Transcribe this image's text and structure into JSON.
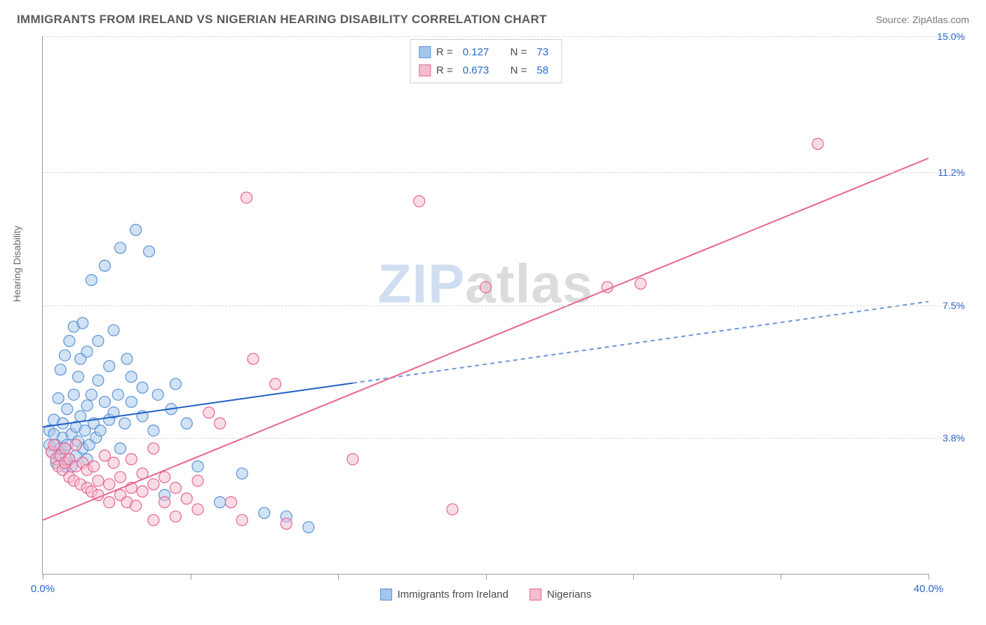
{
  "header": {
    "title": "IMMIGRANTS FROM IRELAND VS NIGERIAN HEARING DISABILITY CORRELATION CHART",
    "source_label": "Source: ",
    "source_name": "ZipAtlas.com"
  },
  "chart": {
    "type": "scatter",
    "ylabel": "Hearing Disability",
    "xlim": [
      0,
      40
    ],
    "ylim": [
      0,
      15
    ],
    "x_ticks": [
      0,
      6.67,
      13.33,
      20,
      26.67,
      33.33,
      40
    ],
    "x_tick_labels_shown": {
      "0": "0.0%",
      "40": "40.0%"
    },
    "y_gridlines": [
      3.8,
      7.5,
      11.2,
      15.0
    ],
    "y_tick_labels": [
      "3.8%",
      "7.5%",
      "11.2%",
      "15.0%"
    ],
    "background_color": "#ffffff",
    "grid_color": "#d8d8d8",
    "axis_color": "#9a9a9a",
    "tick_label_color": "#2968c8",
    "label_fontsize": 14,
    "marker_radius": 8,
    "marker_opacity": 0.5,
    "series": [
      {
        "name": "Immigrants from Ireland",
        "color_fill": "#a4c6ec",
        "color_stroke": "#5b93d6",
        "R": 0.127,
        "N": 73,
        "trend": {
          "x1": 0,
          "y1": 4.1,
          "x2": 40,
          "y2": 7.6,
          "solid_until_x": 14,
          "solid_color": "#1f5fc4",
          "dash_color": "#6a96d8",
          "width": 2
        },
        "points": [
          [
            0.3,
            3.6
          ],
          [
            0.3,
            4.0
          ],
          [
            0.4,
            3.4
          ],
          [
            0.5,
            3.9
          ],
          [
            0.5,
            4.3
          ],
          [
            0.6,
            3.1
          ],
          [
            0.6,
            3.6
          ],
          [
            0.7,
            3.3
          ],
          [
            0.7,
            4.9
          ],
          [
            0.8,
            3.5
          ],
          [
            0.8,
            5.7
          ],
          [
            0.9,
            3.8
          ],
          [
            0.9,
            4.2
          ],
          [
            1.0,
            3.0
          ],
          [
            1.0,
            3.5
          ],
          [
            1.0,
            6.1
          ],
          [
            1.1,
            3.6
          ],
          [
            1.1,
            4.6
          ],
          [
            1.2,
            3.2
          ],
          [
            1.2,
            6.5
          ],
          [
            1.3,
            3.0
          ],
          [
            1.3,
            3.9
          ],
          [
            1.4,
            5.0
          ],
          [
            1.4,
            6.9
          ],
          [
            1.5,
            3.3
          ],
          [
            1.5,
            4.1
          ],
          [
            1.6,
            3.7
          ],
          [
            1.6,
            5.5
          ],
          [
            1.7,
            4.4
          ],
          [
            1.7,
            6.0
          ],
          [
            1.8,
            3.5
          ],
          [
            1.8,
            7.0
          ],
          [
            1.9,
            4.0
          ],
          [
            2.0,
            3.2
          ],
          [
            2.0,
            4.7
          ],
          [
            2.0,
            6.2
          ],
          [
            2.1,
            3.6
          ],
          [
            2.2,
            5.0
          ],
          [
            2.2,
            8.2
          ],
          [
            2.3,
            4.2
          ],
          [
            2.4,
            3.8
          ],
          [
            2.5,
            5.4
          ],
          [
            2.5,
            6.5
          ],
          [
            2.6,
            4.0
          ],
          [
            2.8,
            4.8
          ],
          [
            2.8,
            8.6
          ],
          [
            3.0,
            4.3
          ],
          [
            3.0,
            5.8
          ],
          [
            3.2,
            4.5
          ],
          [
            3.2,
            6.8
          ],
          [
            3.4,
            5.0
          ],
          [
            3.5,
            3.5
          ],
          [
            3.5,
            9.1
          ],
          [
            3.7,
            4.2
          ],
          [
            3.8,
            6.0
          ],
          [
            4.0,
            4.8
          ],
          [
            4.0,
            5.5
          ],
          [
            4.2,
            9.6
          ],
          [
            4.5,
            4.4
          ],
          [
            4.5,
            5.2
          ],
          [
            4.8,
            9.0
          ],
          [
            5.0,
            4.0
          ],
          [
            5.2,
            5.0
          ],
          [
            5.5,
            2.2
          ],
          [
            5.8,
            4.6
          ],
          [
            6.0,
            5.3
          ],
          [
            6.5,
            4.2
          ],
          [
            7.0,
            3.0
          ],
          [
            8.0,
            2.0
          ],
          [
            9.0,
            2.8
          ],
          [
            10.0,
            1.7
          ],
          [
            11.0,
            1.6
          ],
          [
            12.0,
            1.3
          ]
        ]
      },
      {
        "name": "Nigerians",
        "color_fill": "#f4bccd",
        "color_stroke": "#e8648f",
        "R": 0.673,
        "N": 58,
        "trend": {
          "x1": 0,
          "y1": 1.5,
          "x2": 40,
          "y2": 11.6,
          "solid_until_x": 40,
          "solid_color": "#e8648f",
          "dash_color": "#e8648f",
          "width": 2
        },
        "points": [
          [
            0.4,
            3.4
          ],
          [
            0.5,
            3.6
          ],
          [
            0.6,
            3.2
          ],
          [
            0.7,
            3.0
          ],
          [
            0.8,
            3.3
          ],
          [
            0.9,
            2.9
          ],
          [
            1.0,
            3.1
          ],
          [
            1.0,
            3.5
          ],
          [
            1.2,
            2.7
          ],
          [
            1.2,
            3.2
          ],
          [
            1.4,
            2.6
          ],
          [
            1.5,
            3.0
          ],
          [
            1.5,
            3.6
          ],
          [
            1.7,
            2.5
          ],
          [
            1.8,
            3.1
          ],
          [
            2.0,
            2.4
          ],
          [
            2.0,
            2.9
          ],
          [
            2.2,
            2.3
          ],
          [
            2.3,
            3.0
          ],
          [
            2.5,
            2.2
          ],
          [
            2.5,
            2.6
          ],
          [
            2.8,
            3.3
          ],
          [
            3.0,
            2.0
          ],
          [
            3.0,
            2.5
          ],
          [
            3.2,
            3.1
          ],
          [
            3.5,
            2.2
          ],
          [
            3.5,
            2.7
          ],
          [
            3.8,
            2.0
          ],
          [
            4.0,
            2.4
          ],
          [
            4.0,
            3.2
          ],
          [
            4.2,
            1.9
          ],
          [
            4.5,
            2.3
          ],
          [
            4.5,
            2.8
          ],
          [
            5.0,
            1.5
          ],
          [
            5.0,
            2.5
          ],
          [
            5.0,
            3.5
          ],
          [
            5.5,
            2.0
          ],
          [
            5.5,
            2.7
          ],
          [
            6.0,
            1.6
          ],
          [
            6.0,
            2.4
          ],
          [
            6.5,
            2.1
          ],
          [
            7.0,
            1.8
          ],
          [
            7.0,
            2.6
          ],
          [
            7.5,
            4.5
          ],
          [
            8.0,
            4.2
          ],
          [
            8.5,
            2.0
          ],
          [
            9.0,
            1.5
          ],
          [
            9.2,
            10.5
          ],
          [
            9.5,
            6.0
          ],
          [
            10.5,
            5.3
          ],
          [
            11.0,
            1.4
          ],
          [
            14.0,
            3.2
          ],
          [
            17.0,
            10.4
          ],
          [
            18.5,
            1.8
          ],
          [
            20.0,
            8.0
          ],
          [
            25.5,
            8.0
          ],
          [
            27.0,
            8.1
          ],
          [
            35.0,
            12.0
          ]
        ]
      }
    ],
    "watermark": {
      "zip": "ZIP",
      "atlas": "atlas"
    },
    "legend_top_labels": {
      "R": "R =",
      "N": "N ="
    },
    "legend_bottom": [
      "Immigrants from Ireland",
      "Nigerians"
    ]
  }
}
